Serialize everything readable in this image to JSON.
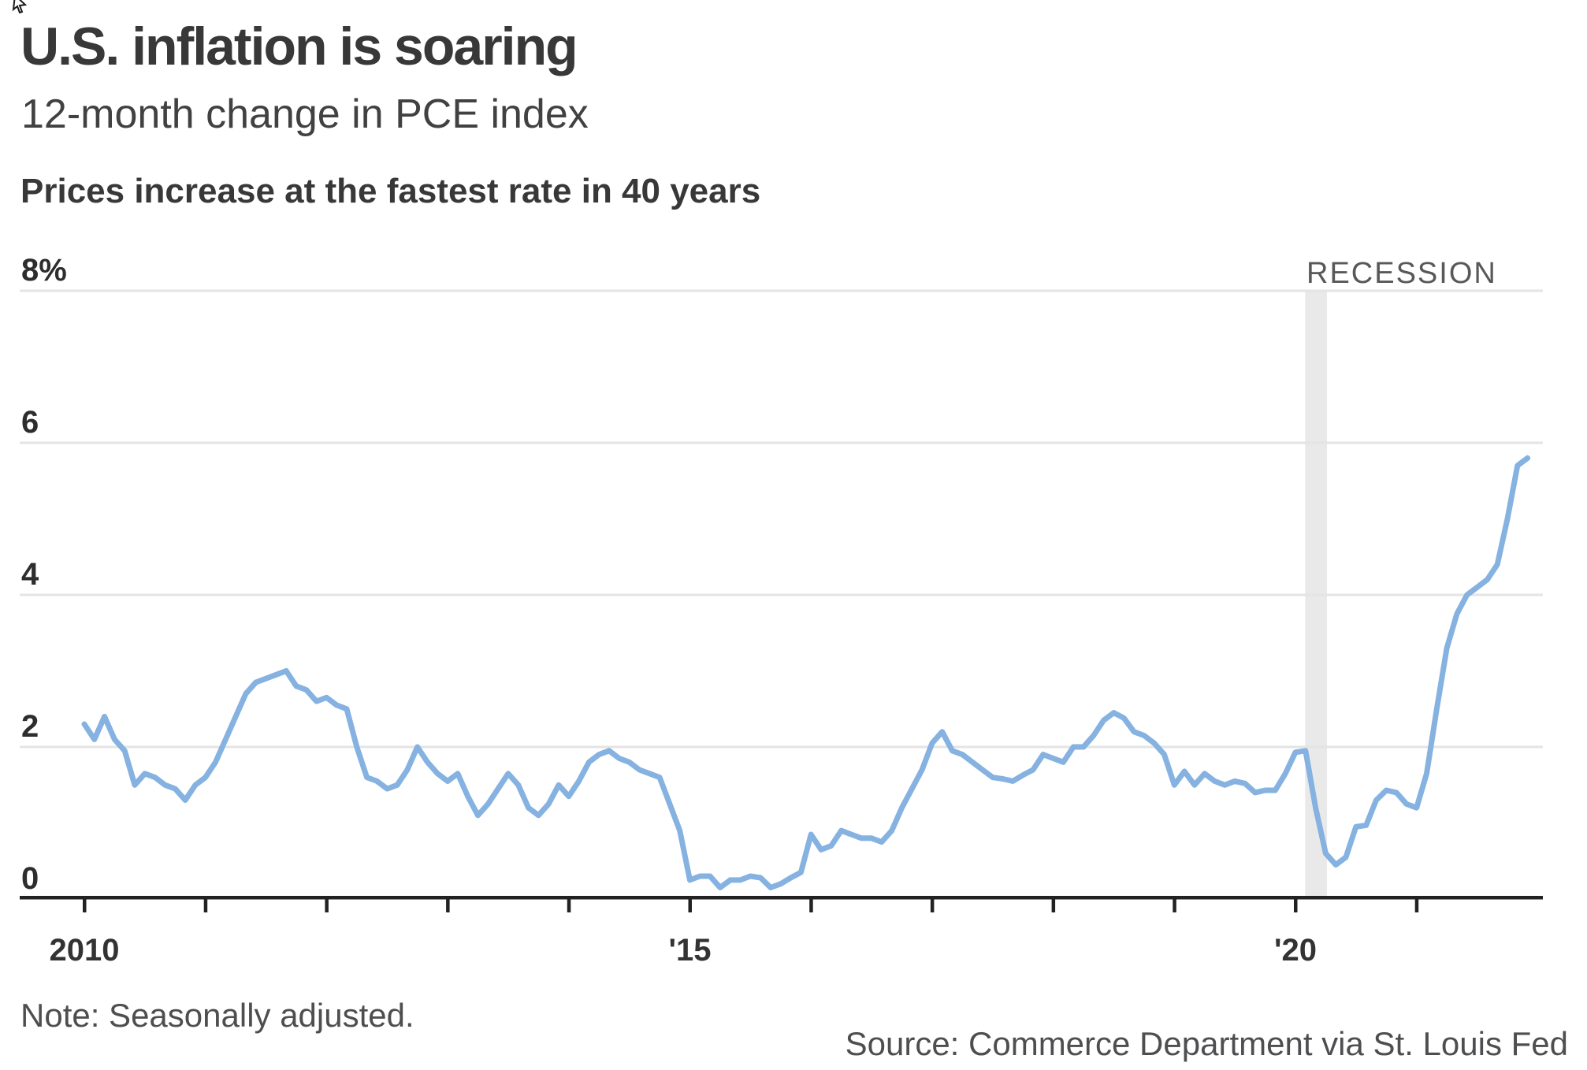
{
  "header": {
    "title": "U.S. inflation is soaring",
    "subtitle": "12-month change in PCE index",
    "statement": "Prices increase at the fastest rate in 40 years"
  },
  "chart": {
    "recession_label": "RECESSION"
  },
  "footer": {
    "note": "Note: Seasonally adjusted.",
    "source": "Source: Commerce Department via St. Louis Fed"
  },
  "colors": {
    "line": "#85b2e0",
    "gridline": "#e4e4e4",
    "axis": "#222222",
    "recession_band": "#e9e9e9",
    "title_text": "#383838",
    "muted_text": "#4e4e50",
    "recession_text": "#58585a"
  },
  "chart_data": {
    "type": "line",
    "title": "U.S. inflation is soaring",
    "subtitle": "12-month change in PCE index",
    "note": "Note: Seasonally adjusted.",
    "source": "Source: Commerce Department via St. Louis Fed",
    "xlabel": "",
    "ylabel": "",
    "ylim": [
      0,
      8
    ],
    "grid": "horizontal",
    "legend": "none",
    "frequency": "monthly",
    "x_start_year": 2010,
    "x_end_year": 2022,
    "y_ticks": [
      {
        "value": 8,
        "label": "8%"
      },
      {
        "value": 6,
        "label": "6"
      },
      {
        "value": 4,
        "label": "4"
      },
      {
        "value": 2,
        "label": "2"
      },
      {
        "value": 0,
        "label": "0"
      }
    ],
    "x_ticks": [
      {
        "year": 2010,
        "label": "2010"
      },
      {
        "year": 2011,
        "label": ""
      },
      {
        "year": 2012,
        "label": ""
      },
      {
        "year": 2013,
        "label": ""
      },
      {
        "year": 2014,
        "label": ""
      },
      {
        "year": 2015,
        "label": "'15"
      },
      {
        "year": 2016,
        "label": ""
      },
      {
        "year": 2017,
        "label": ""
      },
      {
        "year": 2018,
        "label": ""
      },
      {
        "year": 2019,
        "label": ""
      },
      {
        "year": 2020,
        "label": "'20"
      },
      {
        "year": 2021,
        "label": ""
      }
    ],
    "recession_band": {
      "label": "RECESSION",
      "start_year": 2020.08,
      "end_year": 2020.26
    },
    "series": [
      {
        "name": "PCE index, 12-month change (%)",
        "start_month": "2010-01",
        "end_month": "2021-12",
        "values": [
          2.3,
          2.1,
          2.4,
          2.1,
          1.95,
          1.5,
          1.65,
          1.6,
          1.5,
          1.45,
          1.3,
          1.5,
          1.6,
          1.8,
          2.1,
          2.4,
          2.7,
          2.85,
          2.9,
          2.95,
          3.0,
          2.8,
          2.75,
          2.6,
          2.65,
          2.55,
          2.5,
          2.0,
          1.6,
          1.55,
          1.45,
          1.5,
          1.7,
          2.0,
          1.8,
          1.65,
          1.55,
          1.65,
          1.35,
          1.1,
          1.25,
          1.45,
          1.65,
          1.5,
          1.2,
          1.1,
          1.25,
          1.5,
          1.35,
          1.55,
          1.8,
          1.9,
          1.95,
          1.85,
          1.8,
          1.7,
          1.65,
          1.6,
          1.25,
          0.9,
          0.25,
          0.3,
          0.3,
          0.15,
          0.25,
          0.25,
          0.3,
          0.28,
          0.15,
          0.2,
          0.28,
          0.35,
          0.85,
          0.65,
          0.7,
          0.9,
          0.85,
          0.8,
          0.8,
          0.75,
          0.9,
          1.2,
          1.45,
          1.7,
          2.05,
          2.2,
          1.95,
          1.9,
          1.8,
          1.7,
          1.6,
          1.58,
          1.55,
          1.63,
          1.7,
          1.9,
          1.85,
          1.8,
          2.0,
          2.0,
          2.15,
          2.35,
          2.45,
          2.38,
          2.2,
          2.15,
          2.05,
          1.9,
          1.5,
          1.68,
          1.5,
          1.65,
          1.55,
          1.5,
          1.55,
          1.52,
          1.4,
          1.43,
          1.43,
          1.65,
          1.93,
          1.95,
          1.2,
          0.6,
          0.45,
          0.55,
          0.95,
          0.97,
          1.3,
          1.43,
          1.4,
          1.25,
          1.2,
          1.65,
          2.5,
          3.3,
          3.75,
          4.0,
          4.1,
          4.2,
          4.4,
          5.0,
          5.7,
          5.8
        ]
      }
    ]
  }
}
